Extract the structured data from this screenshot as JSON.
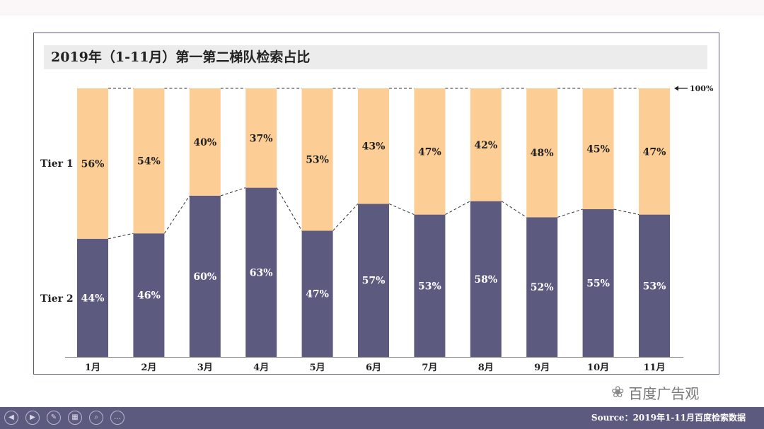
{
  "title": "2019年（1-11月）第一第二梯队检索占比",
  "watermark": {
    "text": "百度广告观",
    "icon": "wechat-icon"
  },
  "footer": {
    "source": "Source：2019年1-11月百度检索数据",
    "controls": [
      {
        "name": "prev-slide-button",
        "icon": "arrow-left-icon",
        "glyph": "◀"
      },
      {
        "name": "next-slide-button",
        "icon": "arrow-right-icon",
        "glyph": "▶"
      },
      {
        "name": "pen-button",
        "icon": "pen-icon",
        "glyph": "✎"
      },
      {
        "name": "slides-overview-button",
        "icon": "grid-icon",
        "glyph": "▦"
      },
      {
        "name": "zoom-button",
        "icon": "magnifier-icon",
        "glyph": "⌕"
      },
      {
        "name": "more-options-button",
        "icon": "ellipsis-icon",
        "glyph": "…"
      }
    ]
  },
  "chart_data": {
    "type": "bar",
    "stacked": true,
    "percent": true,
    "categories": [
      "1月",
      "2月",
      "3月",
      "4月",
      "5月",
      "6月",
      "7月",
      "8月",
      "9月",
      "10月",
      "11月"
    ],
    "series": [
      {
        "name": "Tier 2",
        "color": "#5d5a80",
        "values": [
          44,
          46,
          60,
          63,
          47,
          57,
          53,
          58,
          52,
          55,
          53
        ],
        "labels": [
          "44%",
          "46%",
          "60%",
          "63%",
          "47%",
          "57%",
          "53%",
          "58%",
          "52%",
          "55%",
          "53%"
        ]
      },
      {
        "name": "Tier 1",
        "color": "#fdcd96",
        "values": [
          56,
          54,
          40,
          37,
          53,
          43,
          47,
          42,
          48,
          45,
          47
        ],
        "labels": [
          "56%",
          "54%",
          "40%",
          "37%",
          "53%",
          "43%",
          "47%",
          "42%",
          "48%",
          "45%",
          "47%"
        ]
      }
    ],
    "ylim": [
      0,
      100
    ],
    "reference_label": "100%",
    "grid": false,
    "legend": "left"
  }
}
